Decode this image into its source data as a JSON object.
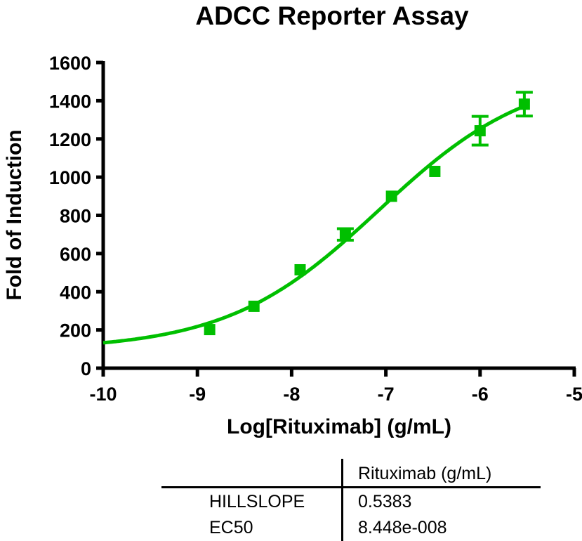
{
  "chart_data": {
    "type": "scatter",
    "title": "ADCC Reporter Assay",
    "xlabel": "Log[Rituximab] (g/mL)",
    "ylabel": "Fold of Induction",
    "xlim": [
      -10,
      -5
    ],
    "ylim": [
      0,
      1600
    ],
    "xticks": [
      -10,
      -9,
      -8,
      -7,
      -6,
      -5
    ],
    "xtick_labels": [
      "-10",
      "-9",
      "-8",
      "-7",
      "-6",
      "-5"
    ],
    "yticks": [
      0,
      200,
      400,
      600,
      800,
      1000,
      1200,
      1400,
      1600
    ],
    "ytick_labels": [
      "0",
      "200",
      "400",
      "600",
      "800",
      "1000",
      "1200",
      "1400",
      "1600"
    ],
    "grid": false,
    "legend": null,
    "series": [
      {
        "name": "Rituximab (g/mL)",
        "color": "#00bf00",
        "marker": "square",
        "x": [
          -8.87,
          -8.4,
          -7.91,
          -7.43,
          -6.94,
          -6.48,
          -6.0,
          -5.53
        ],
        "y": [
          202,
          324,
          515,
          700,
          900,
          1030,
          1243,
          1382
        ],
        "error": [
          0,
          0,
          0,
          30,
          0,
          0,
          75,
          62
        ]
      }
    ],
    "fit": {
      "type": "sigmoidal dose-response (variable slope)",
      "color": "#00bf00",
      "bottom": 95,
      "top": 1560,
      "logEC50": -7.073,
      "hillslope": 0.5383,
      "x_range": [
        -10,
        -5.53
      ]
    },
    "results_table": {
      "column_header": "Rituximab (g/mL)",
      "rows": [
        {
          "label": "HILLSLOPE",
          "value": "0.5383"
        },
        {
          "label": "EC50",
          "value": "8.448e-008"
        }
      ]
    }
  },
  "colors": {
    "series": "#00bf00",
    "axis": "#000000",
    "background": "#ffffff"
  }
}
